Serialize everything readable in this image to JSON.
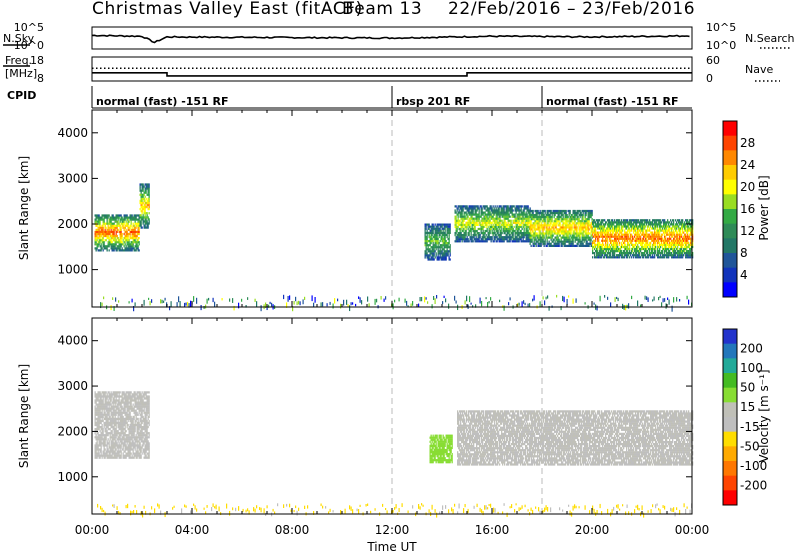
{
  "title": "Christmas Valley East (fitACF)",
  "beam_label": "Beam 13",
  "date_range": "22/Feb/2016 – 23/Feb/2016",
  "labels": {
    "nsky": "N.Sky",
    "nsearch": "N.Search",
    "freq_line1": "Freq.",
    "freq_line2": "[MHz]",
    "nave": "Nave",
    "cpid": "CPID",
    "x_axis": "Time UT"
  },
  "noise_ticks_left": [
    "10^5",
    "10^0"
  ],
  "noise_ticks_right": [
    "10^5",
    "10^0"
  ],
  "freq_ticks_left": [
    "18",
    "8"
  ],
  "freq_ticks_right": [
    "60",
    "0"
  ],
  "cpid_segments": [
    {
      "label": "normal (fast) -151 RF",
      "start": 0,
      "end": 12
    },
    {
      "label": "rbsp 201 RF",
      "start": 12,
      "end": 18
    },
    {
      "label": "normal (fast) -151 RF",
      "start": 18,
      "end": 24
    }
  ],
  "time_ticks": [
    "00:00",
    "04:00",
    "08:00",
    "12:00",
    "16:00",
    "20:00",
    "00:00"
  ],
  "range_ticks": [
    "1000",
    "2000",
    "3000",
    "4000"
  ],
  "power_colorbar": {
    "label": "Power [dB]",
    "ticks": [
      "28",
      "24",
      "20",
      "16",
      "12",
      "8",
      "4"
    ],
    "colors": [
      "#ff0000",
      "#ff4400",
      "#ff8800",
      "#ffcc00",
      "#ffff00",
      "#99dd22",
      "#33aa44",
      "#2e8b57",
      "#227766",
      "#1f5599",
      "#1133bb",
      "#0000ff"
    ]
  },
  "velocity_colorbar": {
    "label": "Velocity [m s⁻¹]",
    "ticks": [
      "200",
      "100",
      "50",
      "15",
      "-15",
      "-50",
      "-100",
      "-200"
    ],
    "colors": [
      "#2233cc",
      "#2277bb",
      "#22aa99",
      "#44bb22",
      "#88dd33",
      "#c0c0b8",
      "#bfbfbf",
      "#ffdd00",
      "#ffaa00",
      "#ff7700",
      "#ff4400",
      "#ff0000"
    ]
  },
  "chart_data": {
    "type": "heatmap",
    "x_range_hours": [
      0,
      24
    ],
    "range_km": [
      180,
      4500
    ],
    "nsky_profile": [
      [
        0,
        0.62
      ],
      [
        2,
        0.58
      ],
      [
        2.5,
        0.3
      ],
      [
        3,
        0.55
      ],
      [
        8,
        0.52
      ],
      [
        12,
        0.5
      ],
      [
        16,
        0.58
      ],
      [
        20,
        0.55
      ],
      [
        24,
        0.6
      ]
    ],
    "freq_steps_mhz": [
      [
        0,
        11.4
      ],
      [
        3,
        10.1
      ],
      [
        15,
        11.4
      ],
      [
        24,
        11.4
      ]
    ],
    "nave_level": 32,
    "power_echoes": [
      {
        "t0": 0.1,
        "t1": 1.9,
        "r0": 1400,
        "r1": 2200,
        "core": 28
      },
      {
        "t0": 1.9,
        "t1": 2.3,
        "r0": 1900,
        "r1": 2850,
        "core": 24
      },
      {
        "t0": 13.3,
        "t1": 14.3,
        "r0": 1200,
        "r1": 2000,
        "core": 16
      },
      {
        "t0": 14.5,
        "t1": 17.5,
        "r0": 1600,
        "r1": 2400,
        "core": 20
      },
      {
        "t0": 17.5,
        "t1": 20.0,
        "r0": 1500,
        "r1": 2300,
        "core": 24
      },
      {
        "t0": 20.0,
        "t1": 24.0,
        "r0": 1250,
        "r1": 2100,
        "core": 28
      }
    ],
    "velocity_regions": [
      {
        "t0": 0.1,
        "t1": 2.3,
        "r0": 1400,
        "r1": 2850,
        "v": 0
      },
      {
        "t0": 13.5,
        "t1": 14.4,
        "r0": 1300,
        "r1": 1900,
        "v": 60
      },
      {
        "t0": 14.6,
        "t1": 24.0,
        "r0": 1250,
        "r1": 2450,
        "v": 0
      }
    ]
  }
}
